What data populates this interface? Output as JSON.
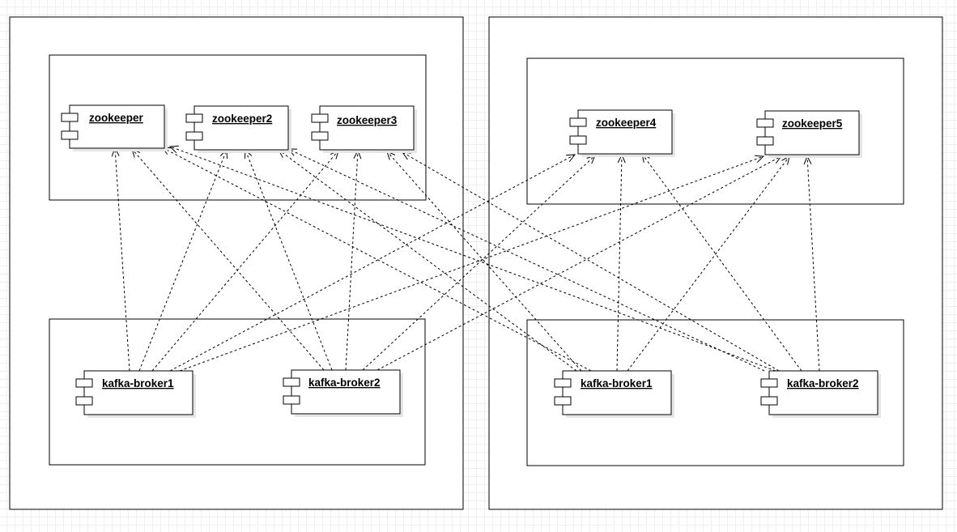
{
  "diagram": {
    "nodes": {
      "zk1": "zookeeper",
      "zk2": "zookeeper2",
      "zk3": "zookeeper3",
      "zk4": "zookeeper4",
      "zk5": "zookeeper5",
      "kbL1": "kafka-broker1",
      "kbL2": "kafka-broker2",
      "kbR1": "kafka-broker1",
      "kbR2": "kafka-broker2"
    },
    "edges": [
      [
        "kbL1",
        "zk1"
      ],
      [
        "kbL1",
        "zk2"
      ],
      [
        "kbL1",
        "zk3"
      ],
      [
        "kbL1",
        "zk4"
      ],
      [
        "kbL1",
        "zk5"
      ],
      [
        "kbL2",
        "zk1"
      ],
      [
        "kbL2",
        "zk2"
      ],
      [
        "kbL2",
        "zk3"
      ],
      [
        "kbL2",
        "zk4"
      ],
      [
        "kbL2",
        "zk5"
      ],
      [
        "kbR1",
        "zk1"
      ],
      [
        "kbR1",
        "zk2"
      ],
      [
        "kbR1",
        "zk3"
      ],
      [
        "kbR1",
        "zk4"
      ],
      [
        "kbR1",
        "zk5"
      ],
      [
        "kbR2",
        "zk1"
      ],
      [
        "kbR2",
        "zk2"
      ],
      [
        "kbR2",
        "zk3"
      ],
      [
        "kbR2",
        "zk4"
      ],
      [
        "kbR2",
        "zk5"
      ]
    ],
    "line_style": "dashed",
    "arrow": "open"
  }
}
